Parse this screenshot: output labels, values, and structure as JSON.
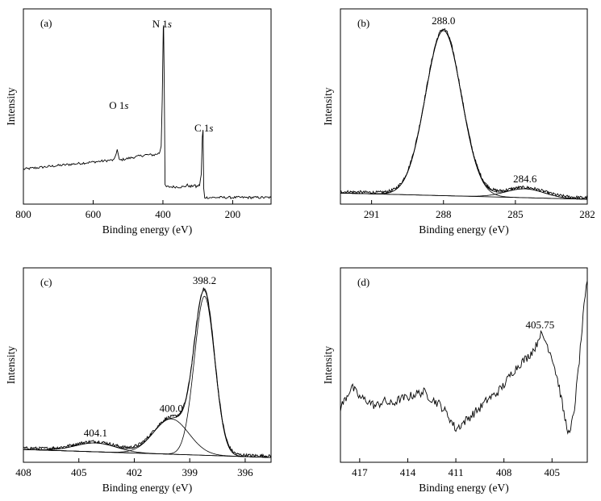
{
  "chart_data": [
    {
      "panel": "(a)",
      "type": "line",
      "xlabel": "Binding energy (eV)",
      "ylabel": "Intensity",
      "xlim": [
        800,
        90
      ],
      "xticks": [
        800,
        600,
        400,
        200
      ],
      "ylim": [
        0,
        100
      ],
      "x": [
        800,
        750,
        700,
        650,
        600,
        550,
        540,
        531,
        525,
        500,
        450,
        425,
        410,
        405,
        402,
        399,
        398,
        396,
        394,
        390,
        370,
        340,
        330,
        320,
        310,
        305,
        295,
        290,
        287,
        285,
        283,
        280,
        260,
        200,
        150,
        90
      ],
      "y": [
        17,
        18,
        19,
        20,
        21,
        22,
        22,
        28,
        22,
        23,
        25,
        25,
        26,
        30,
        56,
        97,
        98,
        60,
        8,
        7,
        7,
        7,
        8,
        7,
        8,
        7,
        8,
        14,
        35,
        39,
        6,
        1,
        1,
        1,
        1,
        1
      ],
      "annotations": [
        {
          "text": "N 1s",
          "x": 398
        },
        {
          "text": "O 1s",
          "x": 531
        },
        {
          "text": "C 1s",
          "x": 285
        }
      ]
    },
    {
      "panel": "(b)",
      "type": "line",
      "xlabel": "Binding energy (eV)",
      "ylabel": "Intensity",
      "xlim": [
        292.3,
        282
      ],
      "xticks": [
        291,
        288,
        285,
        282
      ],
      "ylim": [
        0,
        100
      ],
      "baseline": [
        [
          292.3,
          3.5
        ],
        [
          282,
          0
        ]
      ],
      "peaks": [
        {
          "center": 288.0,
          "height": 93,
          "width": 0.75,
          "label": "288.0"
        },
        {
          "center": 284.6,
          "height": 5,
          "width": 0.8,
          "label": "284.6"
        }
      ]
    },
    {
      "panel": "(c)",
      "type": "line",
      "xlabel": "Binding energy (eV)",
      "ylabel": "Intensity",
      "xlim": [
        408,
        394.6
      ],
      "xticks": [
        408,
        405,
        402,
        399,
        396
      ],
      "ylim": [
        0,
        100
      ],
      "baseline": [
        [
          408,
          4.5
        ],
        [
          394.6,
          0
        ]
      ],
      "peaks": [
        {
          "center": 404.1,
          "height": 5,
          "width": 1.1,
          "label": "404.1"
        },
        {
          "center": 400.0,
          "height": 20,
          "width": 0.95,
          "label": "400.0"
        },
        {
          "center": 398.2,
          "height": 90,
          "width": 0.55,
          "label": "398.2"
        }
      ]
    },
    {
      "panel": "(d)",
      "type": "line",
      "xlabel": "Binding energy (eV)",
      "ylabel": "Intensity",
      "xlim": [
        418.2,
        402.8
      ],
      "xticks": [
        417,
        414,
        411,
        408,
        405
      ],
      "ylim": [
        0,
        100
      ],
      "x": [
        418.2,
        417.5,
        417,
        416.5,
        416,
        415.5,
        415,
        414.5,
        414,
        413.5,
        413,
        412.5,
        412,
        411.5,
        411,
        410.5,
        410,
        409.5,
        409,
        408.5,
        408,
        407.5,
        407,
        406.5,
        406,
        405.75,
        405.4,
        405,
        404.6,
        404.2,
        403.9,
        403.6,
        403.3,
        403.0,
        402.8
      ],
      "y": [
        28,
        40,
        34,
        32,
        29,
        32,
        30,
        33,
        34,
        36,
        37,
        33,
        30,
        24,
        16,
        20,
        24,
        28,
        33,
        36,
        41,
        48,
        53,
        57,
        63,
        70,
        66,
        57,
        42,
        22,
        12,
        28,
        55,
        85,
        100
      ],
      "annotations": [
        {
          "text": "405.75",
          "x": 405.75
        }
      ]
    }
  ]
}
